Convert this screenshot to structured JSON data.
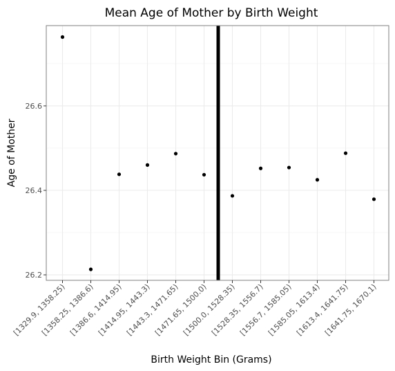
{
  "chart_data": {
    "type": "scatter",
    "title": "Mean Age of Mother by Birth Weight",
    "xlabel": "Birth Weight Bin (Grams)",
    "ylabel": "Age of Mother",
    "categories": [
      "[1329.9, 1358.25)",
      "[1358.25, 1386.6)",
      "[1386.6, 1414.95)",
      "[1414.95, 1443.3)",
      "[1443.3, 1471.65)",
      "[1471.65, 1500.0)",
      "[1500.0, 1528.35)",
      "[1528.35, 1556.7)",
      "[1556.7, 1585.05)",
      "[1585.05, 1613.4)",
      "[1613.4, 1641.75)",
      "[1641.75, 1670.1)"
    ],
    "values": [
      26.763,
      26.213,
      26.438,
      26.46,
      26.487,
      26.437,
      26.387,
      26.452,
      26.454,
      26.425,
      26.488,
      26.379
    ],
    "yticks": [
      "26.2",
      "26.4",
      "26.6"
    ],
    "ylim": [
      26.187,
      26.79
    ],
    "vline_x": 1500.0,
    "grid": true,
    "point_color": "#000000",
    "vline_color": "#000000"
  }
}
